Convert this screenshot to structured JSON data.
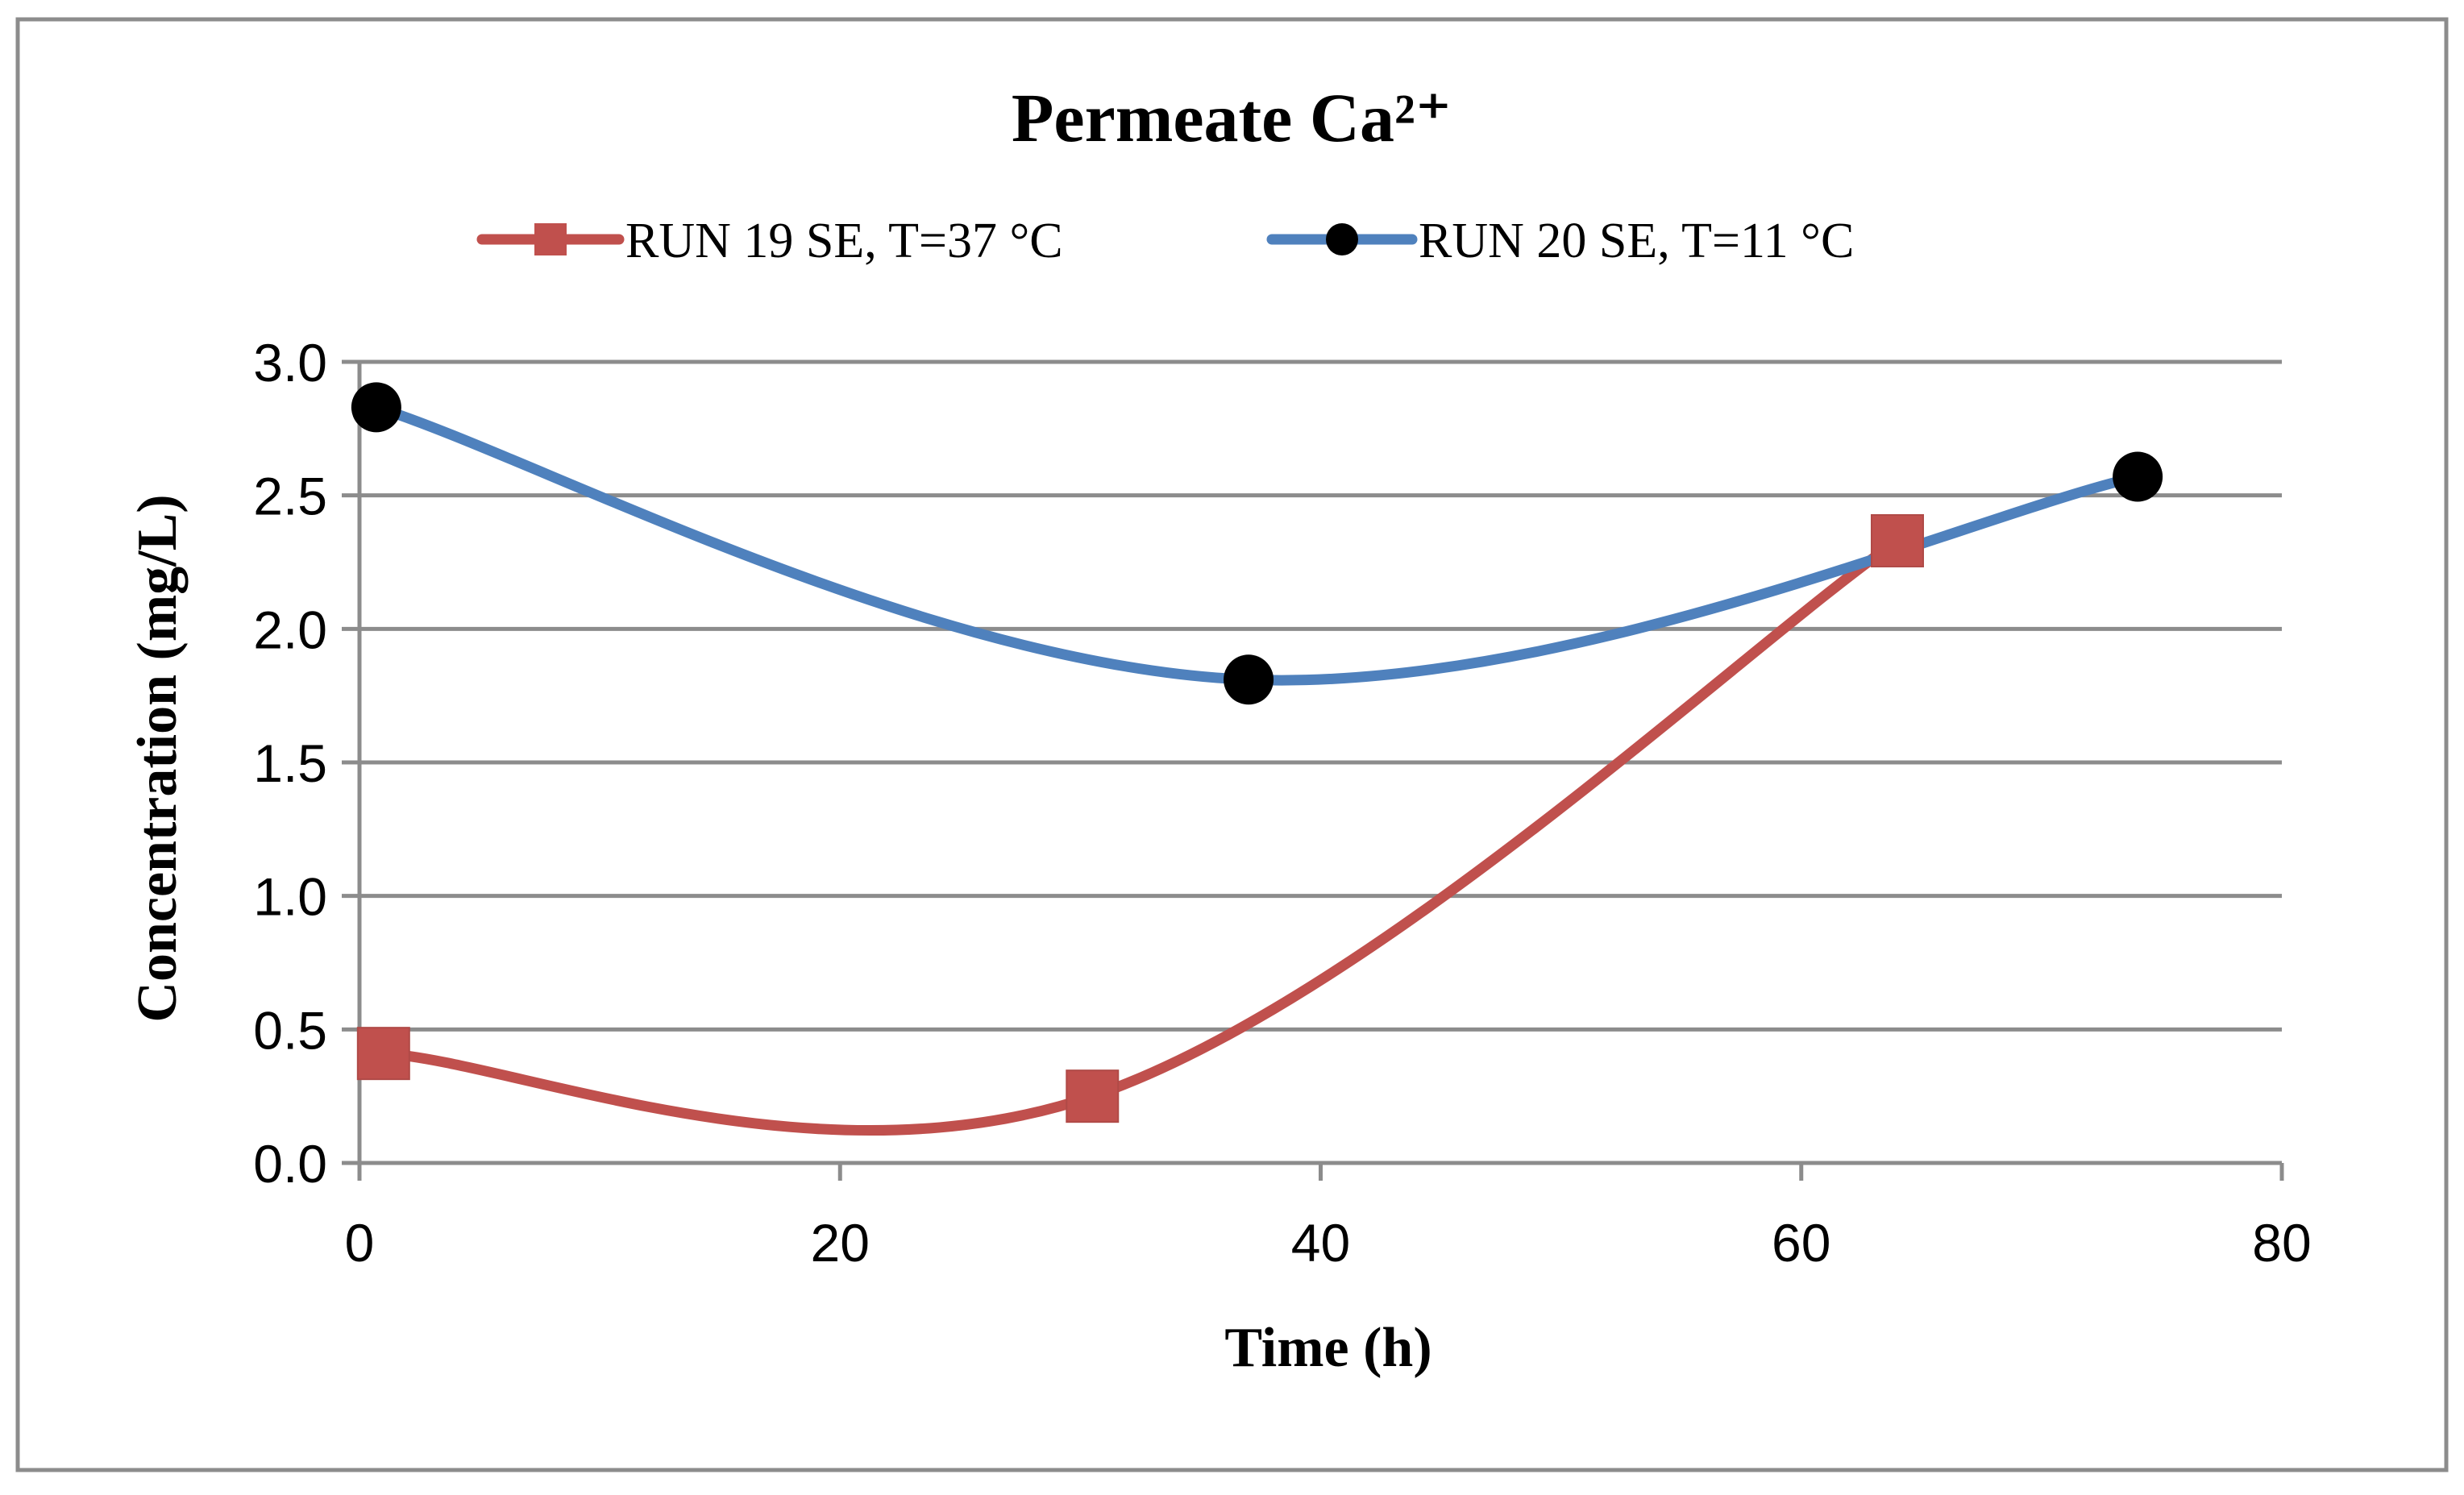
{
  "chart_data": {
    "type": "line",
    "smoothed": true,
    "title": "Permeate Ca²⁺",
    "xlabel": "Time (h)",
    "ylabel": "Concentration (mg/L)",
    "xlim": [
      0,
      80
    ],
    "ylim": [
      0,
      3.0
    ],
    "x_ticks": [
      0,
      20,
      40,
      60,
      80
    ],
    "y_ticks": [
      0.0,
      0.5,
      1.0,
      1.5,
      2.0,
      2.5,
      3.0
    ],
    "x_tick_labels": [
      "0",
      "20",
      "40",
      "60",
      "80"
    ],
    "y_tick_labels": [
      "0.0",
      "0.5",
      "1.0",
      "1.5",
      "2.0",
      "2.5",
      "3.0"
    ],
    "grid": "horizontal",
    "legend_position": "top",
    "series": [
      {
        "name": "RUN 19 SE, T=37 °C",
        "color": "#c0504d",
        "marker": "square",
        "x": [
          1,
          30.5,
          64
        ],
        "y": [
          0.41,
          0.25,
          2.33
        ]
      },
      {
        "name": "RUN 20 SE, T=11 °C",
        "color": "#4f81bd",
        "marker": "circle",
        "marker_color": "#000000",
        "x": [
          0.7,
          37,
          74
        ],
        "y": [
          2.83,
          1.81,
          2.57
        ]
      }
    ]
  }
}
